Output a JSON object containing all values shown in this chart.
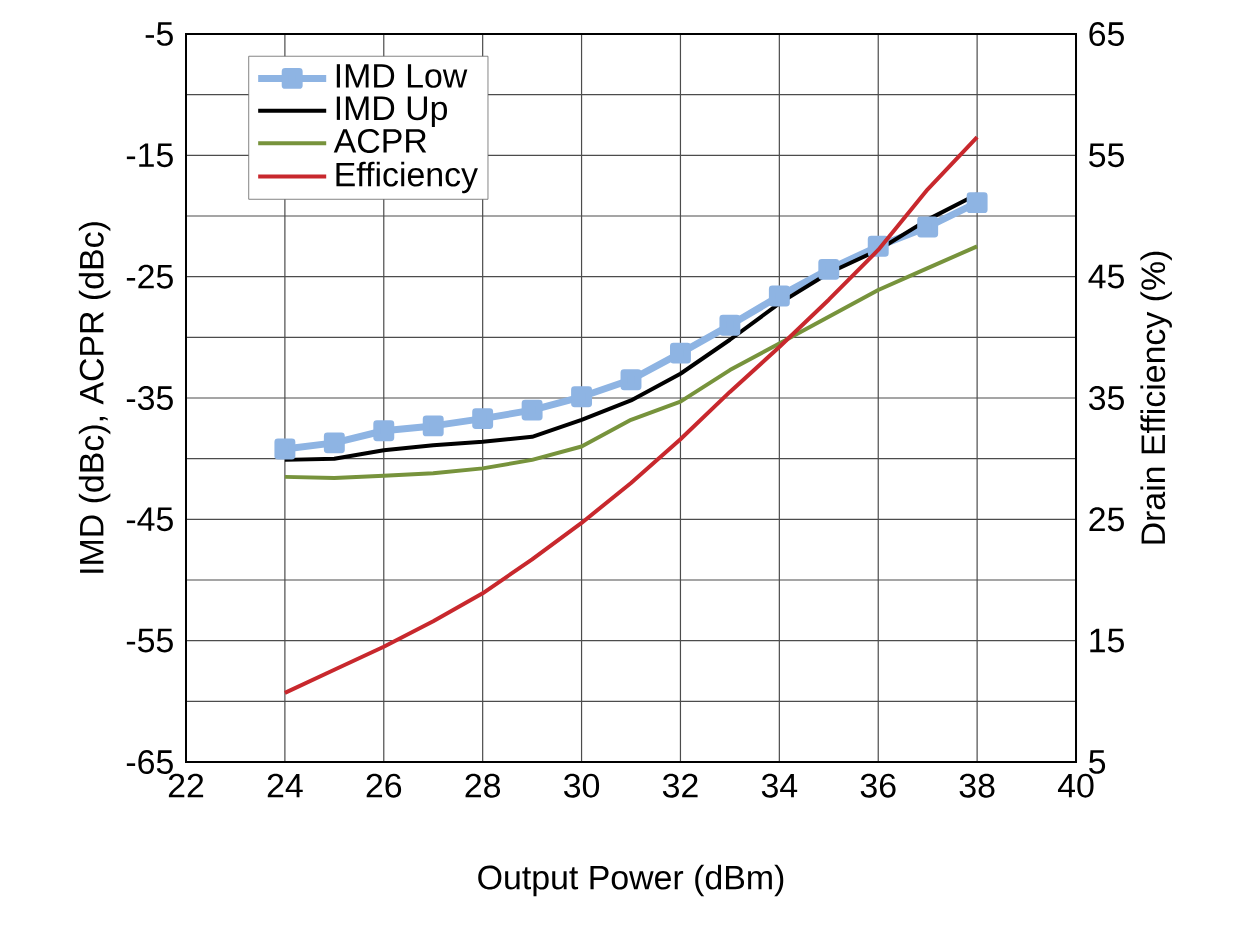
{
  "chart_data": {
    "type": "line",
    "xlabel": "Output Power (dBm)",
    "ylabel": "IMD (dBc), ACPR (dBc)",
    "y2label": "Drain Efficiency (%)",
    "x": [
      24,
      25,
      26,
      27,
      28,
      29,
      30,
      31,
      32,
      33,
      34,
      35,
      36,
      37,
      38
    ],
    "series": [
      {
        "name": "IMD Low",
        "color": "#8eb4e3",
        "marker": "square",
        "values": [
          -39.2,
          -38.7,
          -37.7,
          -37.3,
          -36.7,
          -36.0,
          -34.9,
          -33.5,
          -31.3,
          -29.0,
          -26.6,
          -24.4,
          -22.5,
          -20.9,
          -18.9
        ]
      },
      {
        "name": "IMD Up",
        "color": "#000000",
        "marker": "none",
        "values": [
          -40.1,
          -40.0,
          -39.3,
          -38.9,
          -38.6,
          -38.2,
          -36.8,
          -35.2,
          -33.0,
          -30.2,
          -27.2,
          -24.7,
          -22.8,
          -20.3,
          -18.2
        ]
      },
      {
        "name": "ACPR",
        "color": "#77933c",
        "marker": "none",
        "values": [
          -41.5,
          -41.6,
          -41.4,
          -41.2,
          -40.8,
          -40.1,
          -39.0,
          -36.8,
          -35.3,
          -32.7,
          -30.5,
          -28.3,
          -26.1,
          -24.3,
          -22.5
        ]
      },
      {
        "name": "Efficiency",
        "color": "#c8282d",
        "marker": "none",
        "axis": "y2",
        "values": [
          10.7,
          12.6,
          14.5,
          16.6,
          18.9,
          21.7,
          24.7,
          28.0,
          31.6,
          35.5,
          39.2,
          43.1,
          47.2,
          52.2,
          56.5
        ]
      }
    ],
    "xlim": [
      22,
      40
    ],
    "xticks": [
      22,
      24,
      26,
      28,
      30,
      32,
      34,
      36,
      38,
      40
    ],
    "ylim": [
      -65,
      -5
    ],
    "yticks": [
      -65,
      {
        "value": -60,
        "label": null
      },
      -55,
      {
        "value": -50,
        "label": null
      },
      -45,
      {
        "value": -40,
        "label": null
      },
      -35,
      {
        "value": -30,
        "label": null
      },
      -25,
      {
        "value": -20,
        "label": null
      },
      -15,
      {
        "value": -10,
        "label": null
      },
      -5
    ],
    "y2lim": [
      5,
      65
    ],
    "y2ticks": [
      5,
      15,
      25,
      35,
      45,
      55,
      65
    ],
    "grid": true,
    "legend": "top left",
    "line_style": "solid"
  }
}
